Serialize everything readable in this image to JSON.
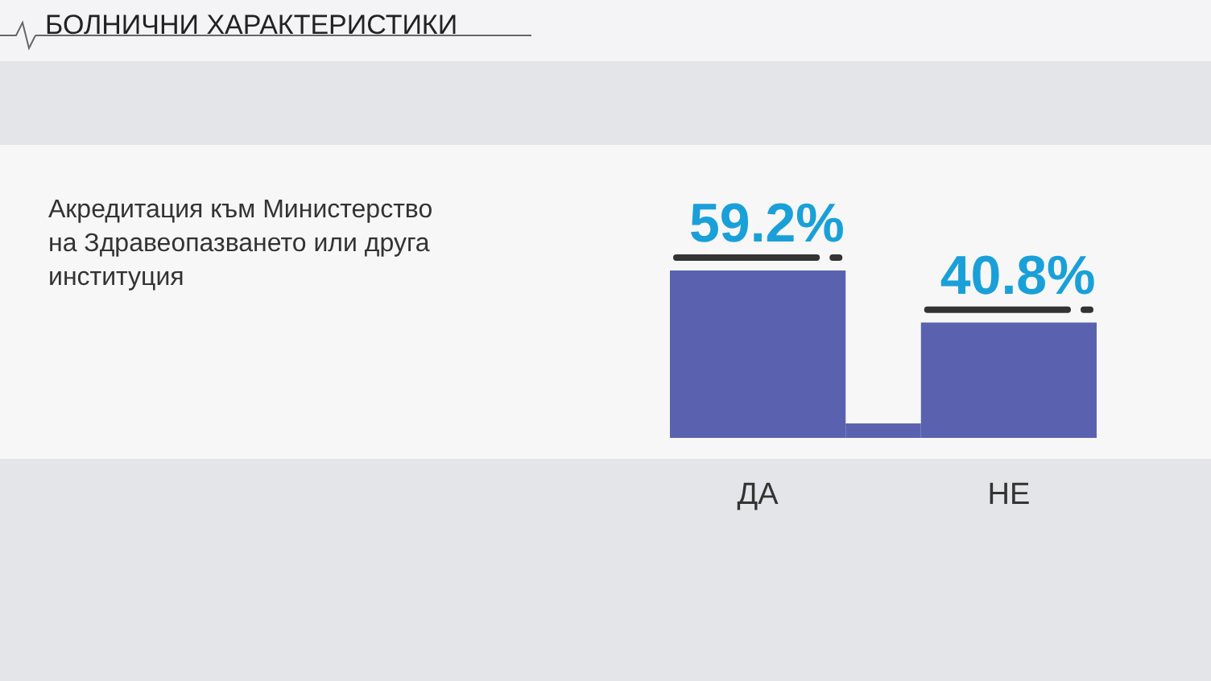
{
  "chart_data": {
    "type": "bar",
    "title": "БОЛНИЧНИ ХАРАКТЕРИСТИКИ",
    "subtitle": "Акредитация към Министерство на Здравеопазването или друга институция",
    "categories": [
      "ДА",
      "НЕ"
    ],
    "values": [
      59.2,
      40.8
    ],
    "color": "#5a62b0",
    "value_labels": [
      "59.2%",
      "40.8%"
    ]
  }
}
